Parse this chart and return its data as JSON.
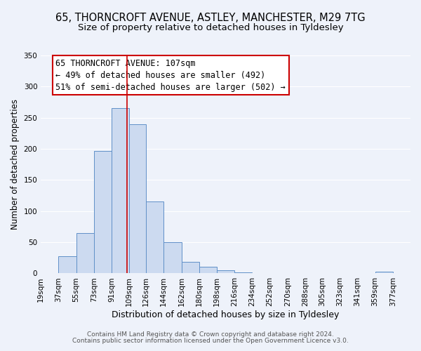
{
  "title1": "65, THORNCROFT AVENUE, ASTLEY, MANCHESTER, M29 7TG",
  "title2": "Size of property relative to detached houses in Tyldesley",
  "xlabel": "Distribution of detached houses by size in Tyldesley",
  "ylabel": "Number of detached properties",
  "xlabels": [
    "19sqm",
    "37sqm",
    "55sqm",
    "73sqm",
    "91sqm",
    "109sqm",
    "126sqm",
    "144sqm",
    "162sqm",
    "180sqm",
    "198sqm",
    "216sqm",
    "234sqm",
    "252sqm",
    "270sqm",
    "288sqm",
    "305sqm",
    "323sqm",
    "341sqm",
    "359sqm",
    "377sqm"
  ],
  "bin_edges": [
    19,
    37,
    55,
    73,
    91,
    109,
    126,
    144,
    162,
    180,
    198,
    216,
    234,
    252,
    270,
    288,
    305,
    323,
    341,
    359,
    377
  ],
  "bar_heights": [
    0,
    28,
    65,
    197,
    265,
    240,
    115,
    50,
    19,
    11,
    5,
    2,
    0,
    0,
    0,
    0,
    0,
    0,
    0,
    3,
    0
  ],
  "bar_color": "#ccdaf0",
  "bar_edge_color": "#6090c8",
  "vline_x": 107,
  "vline_color": "#cc0000",
  "ylim": [
    0,
    350
  ],
  "yticks": [
    0,
    50,
    100,
    150,
    200,
    250,
    300,
    350
  ],
  "annotation_title": "65 THORNCROFT AVENUE: 107sqm",
  "annotation_line1": "← 49% of detached houses are smaller (492)",
  "annotation_line2": "51% of semi-detached houses are larger (502) →",
  "annotation_box_color": "#ffffff",
  "annotation_box_edge": "#cc0000",
  "footer1": "Contains HM Land Registry data © Crown copyright and database right 2024.",
  "footer2": "Contains public sector information licensed under the Open Government Licence v3.0.",
  "bg_color": "#eef2fa",
  "plot_bg_color": "#eef2fa",
  "grid_color": "#ffffff",
  "title1_fontsize": 10.5,
  "title2_fontsize": 9.5,
  "xlabel_fontsize": 9,
  "ylabel_fontsize": 8.5,
  "tick_fontsize": 7.5,
  "annotation_fontsize": 8.5,
  "footer_fontsize": 6.5
}
